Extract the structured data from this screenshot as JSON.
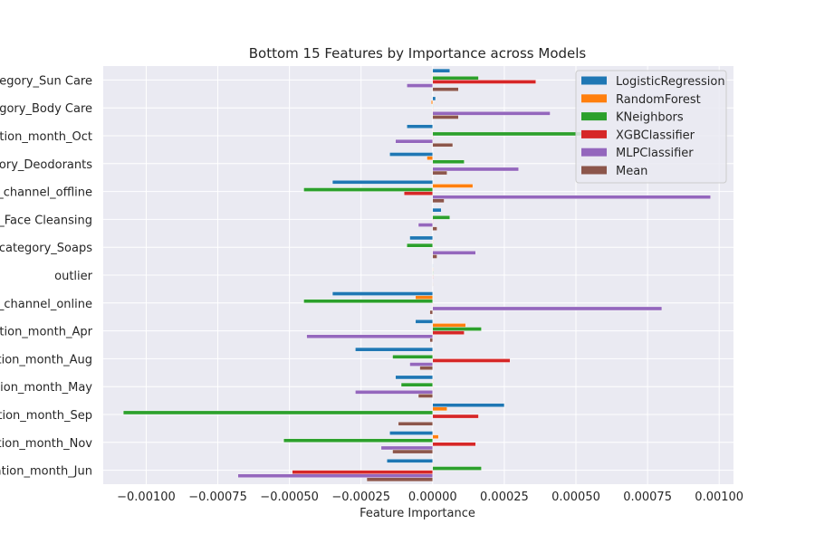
{
  "chart_data": {
    "type": "bar",
    "orientation": "horizontal",
    "title": "Bottom 15 Features by Importance across Models",
    "xlabel": "Feature Importance",
    "ylabel": "",
    "xlim": [
      -0.00115,
      0.00105
    ],
    "xticks": [
      -0.001,
      -0.00075,
      -0.0005,
      -0.00025,
      0.0,
      0.00025,
      0.0005,
      0.00075,
      0.001
    ],
    "xtick_labels": [
      "−0.00100",
      "−0.00075",
      "−0.00050",
      "−0.00025",
      "0.00000",
      "0.00025",
      "0.00050",
      "0.00075",
      "0.00100"
    ],
    "grid": true,
    "legend_position": "top-right",
    "categories": [
      "category_Sun Care",
      "category_Body Care",
      "publication_month_Oct",
      "category_Deodorants",
      "sales_channel_offline",
      "category_Face Cleansing",
      "category_Soaps",
      "outlier",
      "sales_channel_online",
      "publication_month_Apr",
      "publication_month_Aug",
      "publication_month_May",
      "publication_month_Sep",
      "publication_month_Nov",
      "publication_month_Jun"
    ],
    "category_labels": [
      "ategory_Sun Care",
      "egory_Body Care",
      "ation_month_Oct",
      "gory_Deodorants",
      "_channel_offline",
      "_Face Cleansing",
      "ocategory_Soaps",
      "outlier",
      "_channel_online",
      "ation_month_Apr",
      "ation_month_Aug",
      "ation_month_May",
      "ation_month_Sep",
      "ation_month_Nov",
      "ation_month_Jun"
    ],
    "series": [
      {
        "name": "LogisticRegression",
        "color": "#1f77b4",
        "values": [
          6e-05,
          1e-05,
          -9e-05,
          -0.00015,
          -0.00035,
          3e-05,
          -8e-05,
          0.0,
          -0.00035,
          -6e-05,
          -0.00027,
          -0.00013,
          0.00025,
          -0.00015,
          -0.00016
        ]
      },
      {
        "name": "RandomForest",
        "color": "#ff7f0e",
        "values": [
          0.0,
          -5e-06,
          0.0,
          -2e-05,
          0.00014,
          0.0,
          0.0,
          0.0,
          -6e-05,
          0.000115,
          0.0,
          0.0,
          5e-05,
          2e-05,
          0.0
        ]
      },
      {
        "name": "KNeighbors",
        "color": "#2ca02c",
        "values": [
          0.00016,
          0.0,
          0.00052,
          0.00011,
          -0.00045,
          6e-05,
          -9e-05,
          0.0,
          -0.00045,
          0.00017,
          -0.00014,
          -0.00011,
          -0.00108,
          -0.00052,
          0.00017
        ]
      },
      {
        "name": "XGBClassifier",
        "color": "#d62728",
        "values": [
          0.00036,
          0.0,
          0.0,
          0.0,
          -0.0001,
          0.0,
          0.0,
          0.0,
          0.0,
          0.00011,
          0.00027,
          0.0,
          0.00016,
          0.00015,
          -0.00049
        ]
      },
      {
        "name": "MLPClassifier",
        "color": "#9467bd",
        "values": [
          -9e-05,
          0.00041,
          -0.00013,
          0.0003,
          0.00097,
          -5e-05,
          0.00015,
          0.0,
          0.0008,
          -0.00044,
          -8e-05,
          -0.00027,
          0.0,
          -0.00018,
          -0.00068
        ]
      },
      {
        "name": "Mean",
        "color": "#8c564b",
        "values": [
          9e-05,
          9e-05,
          7e-05,
          5e-05,
          4e-05,
          1.5e-05,
          1.5e-05,
          0.0,
          -1e-05,
          -1e-05,
          -4.5e-05,
          -5e-05,
          -0.00012,
          -0.00014,
          -0.00023
        ]
      }
    ]
  }
}
